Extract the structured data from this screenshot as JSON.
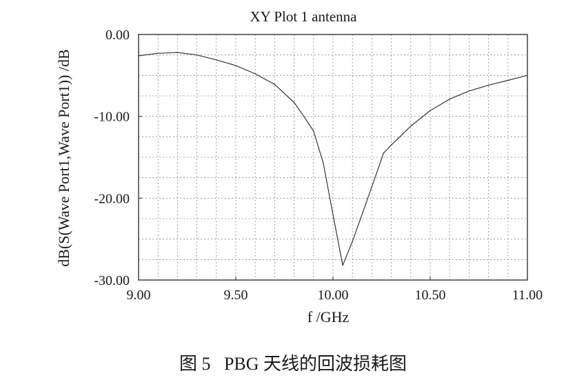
{
  "chart_data": {
    "type": "line",
    "title": "XY Plot 1 antenna",
    "xlabel": "f /GHz",
    "ylabel": "dB(S(Wave Port1,Wave Port1)) /dB",
    "xlim": [
      9.0,
      11.0
    ],
    "ylim": [
      -30,
      0
    ],
    "x_ticks": [
      "9.00",
      "9.50",
      "10.00",
      "10.50",
      "11.00"
    ],
    "y_ticks": [
      "0.00",
      "-10.00",
      "-20.00",
      "-30.00"
    ],
    "grid": true,
    "line_color": "#333333",
    "series": [
      {
        "x": [
          9.0,
          9.1,
          9.2,
          9.3,
          9.4,
          9.5,
          9.6,
          9.7,
          9.8,
          9.85,
          9.9,
          9.95,
          10.0,
          10.05,
          10.1,
          10.2,
          10.26,
          10.3,
          10.4,
          10.5,
          10.6,
          10.7,
          10.8,
          10.9,
          11.0
        ],
        "y": [
          -2.6,
          -2.3,
          -2.2,
          -2.5,
          -3.1,
          -3.8,
          -4.8,
          -6.1,
          -8.3,
          -10.0,
          -11.8,
          -15.7,
          -22.0,
          -28.2,
          -25.3,
          -18.6,
          -14.5,
          -13.5,
          -11.2,
          -9.3,
          -7.9,
          -6.9,
          -6.2,
          -5.6,
          -5.0
        ]
      }
    ]
  },
  "caption": "图 5   PBG 天线的回波损耗图"
}
